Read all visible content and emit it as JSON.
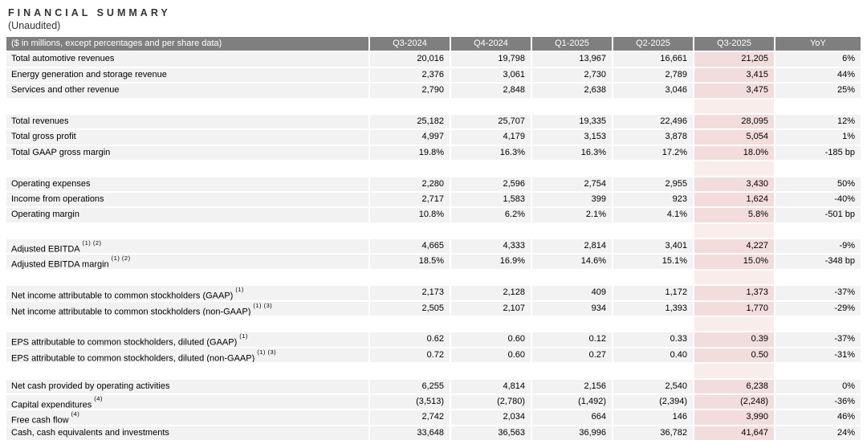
{
  "page": {
    "title": "FINANCIAL SUMMARY",
    "subtitle": "(Unaudited)"
  },
  "colors": {
    "header_bg": "#7f7f7f",
    "header_text": "#ffffff",
    "row_bg": "#f2f2f2",
    "highlight_column_bg": "#f2dddc",
    "highlight_spacer_bg": "#f9edec",
    "text": "#000000"
  },
  "table": {
    "columns": [
      "($ in millions, except percentages and per share data)",
      "Q3-2024",
      "Q4-2024",
      "Q1-2025",
      "Q2-2025",
      "Q3-2025",
      "YoY"
    ],
    "highlight_column": "Q3-2025",
    "sections": [
      {
        "rows": [
          {
            "label": "Total automotive revenues",
            "sup": "",
            "values": [
              "20,016",
              "19,798",
              "13,967",
              "16,661",
              "21,205"
            ],
            "yoy": "6%"
          },
          {
            "label": "Energy generation and storage revenue",
            "sup": "",
            "values": [
              "2,376",
              "3,061",
              "2,730",
              "2,789",
              "3,415"
            ],
            "yoy": "44%"
          },
          {
            "label": "Services and other revenue",
            "sup": "",
            "values": [
              "2,790",
              "2,848",
              "2,638",
              "3,046",
              "3,475"
            ],
            "yoy": "25%"
          }
        ]
      },
      {
        "rows": [
          {
            "label": "Total revenues",
            "sup": "",
            "values": [
              "25,182",
              "25,707",
              "19,335",
              "22,496",
              "28,095"
            ],
            "yoy": "12%"
          },
          {
            "label": "Total gross profit",
            "sup": "",
            "values": [
              "4,997",
              "4,179",
              "3,153",
              "3,878",
              "5,054"
            ],
            "yoy": "1%"
          },
          {
            "label": "Total GAAP gross margin",
            "sup": "",
            "values": [
              "19.8%",
              "16.3%",
              "16.3%",
              "17.2%",
              "18.0%"
            ],
            "yoy": "-185 bp"
          }
        ]
      },
      {
        "rows": [
          {
            "label": "Operating expenses",
            "sup": "",
            "values": [
              "2,280",
              "2,596",
              "2,754",
              "2,955",
              "3,430"
            ],
            "yoy": "50%"
          },
          {
            "label": "Income from operations",
            "sup": "",
            "values": [
              "2,717",
              "1,583",
              "399",
              "923",
              "1,624"
            ],
            "yoy": "-40%"
          },
          {
            "label": "Operating margin",
            "sup": "",
            "values": [
              "10.8%",
              "6.2%",
              "2.1%",
              "4.1%",
              "5.8%"
            ],
            "yoy": "-501 bp"
          }
        ]
      },
      {
        "rows": [
          {
            "label": "Adjusted EBITDA",
            "sup": "(1) (2)",
            "values": [
              "4,665",
              "4,333",
              "2,814",
              "3,401",
              "4,227"
            ],
            "yoy": "-9%"
          },
          {
            "label": "Adjusted EBITDA margin",
            "sup": "(1) (2)",
            "values": [
              "18.5%",
              "16.9%",
              "14.6%",
              "15.1%",
              "15.0%"
            ],
            "yoy": "-348 bp"
          }
        ]
      },
      {
        "rows": [
          {
            "label": "Net income attributable to common stockholders (GAAP)",
            "sup": "(1)",
            "values": [
              "2,173",
              "2,128",
              "409",
              "1,172",
              "1,373"
            ],
            "yoy": "-37%"
          },
          {
            "label": "Net income attributable to common stockholders (non-GAAP)",
            "sup": "(1) (3)",
            "values": [
              "2,505",
              "2,107",
              "934",
              "1,393",
              "1,770"
            ],
            "yoy": "-29%"
          }
        ]
      },
      {
        "rows": [
          {
            "label": "EPS attributable to common stockholders, diluted (GAAP)",
            "sup": "(1)",
            "values": [
              "0.62",
              "0.60",
              "0.12",
              "0.33",
              "0.39"
            ],
            "yoy": "-37%"
          },
          {
            "label": "EPS attributable to common stockholders, diluted (non-GAAP)",
            "sup": "(1) (3)",
            "values": [
              "0.72",
              "0.60",
              "0.27",
              "0.40",
              "0.50"
            ],
            "yoy": "-31%"
          }
        ]
      },
      {
        "rows": [
          {
            "label": "Net cash provided by operating activities",
            "sup": "",
            "values": [
              "6,255",
              "4,814",
              "2,156",
              "2,540",
              "6,238"
            ],
            "yoy": "0%"
          },
          {
            "label": "Capital expenditures",
            "sup": "(4)",
            "values": [
              "(3,513)",
              "(2,780)",
              "(1,492)",
              "(2,394)",
              "(2,248)"
            ],
            "yoy": "-36%"
          },
          {
            "label": "Free cash flow",
            "sup": "(4)",
            "values": [
              "2,742",
              "2,034",
              "664",
              "146",
              "3,990"
            ],
            "yoy": "46%"
          },
          {
            "label": "Cash, cash equivalents and investments",
            "sup": "",
            "values": [
              "33,648",
              "36,563",
              "36,996",
              "36,782",
              "41,647"
            ],
            "yoy": "24%"
          }
        ]
      }
    ]
  }
}
